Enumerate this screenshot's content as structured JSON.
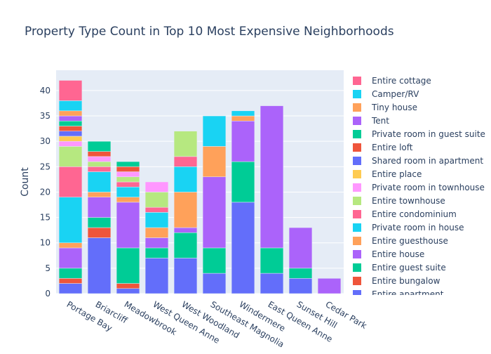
{
  "chart_data": {
    "type": "bar",
    "barmode": "stack",
    "title": "Property Type Count in Top 10 Most Expensive Neighborhoods",
    "xlabel": "",
    "ylabel": "Count",
    "ylim": [
      0,
      44
    ],
    "yticks": [
      0,
      5,
      10,
      15,
      20,
      25,
      30,
      35,
      40
    ],
    "grid": true,
    "legend_position": "right",
    "categories": [
      "Portage Bay",
      "Briarcliff",
      "Meadowbrook",
      "West Queen Anne",
      "West Woodland",
      "Southeast Magnolia",
      "Windermere",
      "East Queen Anne",
      "Sunset Hill",
      "Cedar Park"
    ],
    "series": [
      {
        "name": "Entire apartment",
        "color": "#636efa",
        "values": [
          2,
          11,
          1,
          7,
          7,
          4,
          18,
          4,
          3,
          0
        ]
      },
      {
        "name": "Entire bungalow",
        "color": "#EF553B",
        "values": [
          1,
          2,
          1,
          0,
          0,
          0,
          0,
          0,
          0,
          0
        ]
      },
      {
        "name": "Entire guest suite",
        "color": "#00cc96",
        "values": [
          2,
          2,
          7,
          2,
          5,
          5,
          8,
          5,
          2,
          0
        ]
      },
      {
        "name": "Entire house",
        "color": "#ab63fa",
        "values": [
          4,
          4,
          9,
          2,
          1,
          14,
          8,
          28,
          8,
          3
        ]
      },
      {
        "name": "Entire guesthouse",
        "color": "#FFA15A",
        "values": [
          1,
          1,
          1,
          2,
          7,
          6,
          1,
          0,
          0,
          0
        ]
      },
      {
        "name": "Private room in house",
        "color": "#19d3f3",
        "values": [
          9,
          4,
          2,
          3,
          5,
          6,
          1,
          0,
          0,
          0
        ]
      },
      {
        "name": "Entire condominium",
        "color": "#FF6692",
        "values": [
          6,
          1,
          1,
          1,
          2,
          0,
          0,
          0,
          0,
          0
        ]
      },
      {
        "name": "Entire townhouse",
        "color": "#B6E880",
        "values": [
          4,
          1,
          1,
          3,
          5,
          0,
          0,
          0,
          0,
          0
        ]
      },
      {
        "name": "Private room in townhouse",
        "color": "#FF97FF",
        "values": [
          1,
          1,
          1,
          2,
          0,
          0,
          0,
          0,
          0,
          0
        ]
      },
      {
        "name": "Entire place",
        "color": "#FECB52",
        "values": [
          1,
          0,
          0,
          0,
          0,
          0,
          0,
          0,
          0,
          0
        ]
      },
      {
        "name": "Shared room in apartment",
        "color": "#636efa",
        "values": [
          1,
          0,
          0,
          0,
          0,
          0,
          0,
          0,
          0,
          0
        ]
      },
      {
        "name": "Entire loft",
        "color": "#EF553B",
        "values": [
          1,
          1,
          1,
          0,
          0,
          0,
          0,
          0,
          0,
          0
        ]
      },
      {
        "name": "Private room in guest suite",
        "color": "#00cc96",
        "values": [
          1,
          2,
          1,
          0,
          0,
          0,
          0,
          0,
          0,
          0
        ]
      },
      {
        "name": "Tent",
        "color": "#ab63fa",
        "values": [
          1,
          0,
          0,
          0,
          0,
          0,
          0,
          0,
          0,
          0
        ]
      },
      {
        "name": "Tiny house",
        "color": "#FFA15A",
        "values": [
          1,
          0,
          0,
          0,
          0,
          0,
          0,
          0,
          0,
          0
        ]
      },
      {
        "name": "Camper/RV",
        "color": "#19d3f3",
        "values": [
          2,
          0,
          0,
          0,
          0,
          0,
          0,
          0,
          0,
          0
        ]
      },
      {
        "name": "Entire cottage",
        "color": "#FF6692",
        "values": [
          4,
          0,
          0,
          0,
          0,
          0,
          0,
          0,
          0,
          0
        ]
      }
    ]
  }
}
